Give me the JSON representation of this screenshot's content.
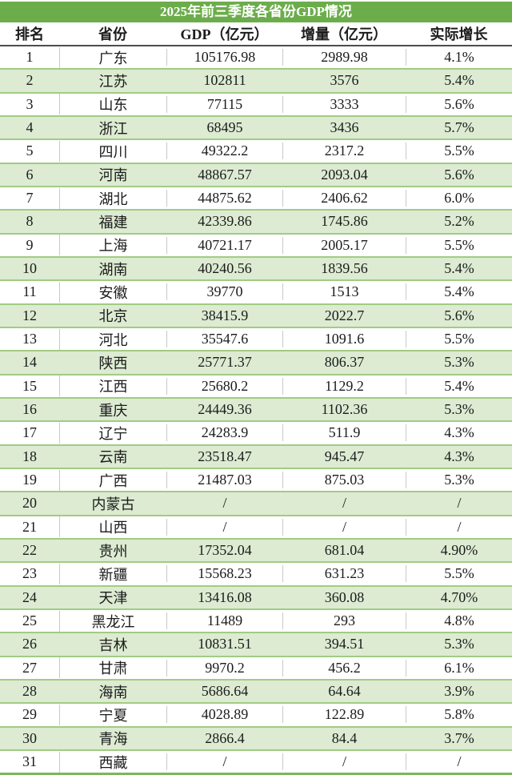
{
  "colors": {
    "title_bg": "#6CAD4B",
    "title_text": "#FFFFFF",
    "row_bg": "#FFFFFF",
    "row_alt_bg": "#DCEBD2",
    "row_separator": "#A2CB83",
    "header_bottom_border": "#4D4D4D",
    "cell_divider": "#C9C9C9",
    "table_bottom_border": "#7FB55C",
    "text": "#1B1B1B"
  },
  "chart_data": {
    "type": "table",
    "title": "2025年前三季度各省份GDP情况",
    "columns": [
      "排名",
      "省份",
      "GDP（亿元）",
      "增量（亿元）",
      "实际增长"
    ],
    "rows": [
      [
        "1",
        "广东",
        "105176.98",
        "2989.98",
        "4.1%"
      ],
      [
        "2",
        "江苏",
        "102811",
        "3576",
        "5.4%"
      ],
      [
        "3",
        "山东",
        "77115",
        "3333",
        "5.6%"
      ],
      [
        "4",
        "浙江",
        "68495",
        "3436",
        "5.7%"
      ],
      [
        "5",
        "四川",
        "49322.2",
        "2317.2",
        "5.5%"
      ],
      [
        "6",
        "河南",
        "48867.57",
        "2093.04",
        "5.6%"
      ],
      [
        "7",
        "湖北",
        "44875.62",
        "2406.62",
        "6.0%"
      ],
      [
        "8",
        "福建",
        "42339.86",
        "1745.86",
        "5.2%"
      ],
      [
        "9",
        "上海",
        "40721.17",
        "2005.17",
        "5.5%"
      ],
      [
        "10",
        "湖南",
        "40240.56",
        "1839.56",
        "5.4%"
      ],
      [
        "11",
        "安徽",
        "39770",
        "1513",
        "5.4%"
      ],
      [
        "12",
        "北京",
        "38415.9",
        "2022.7",
        "5.6%"
      ],
      [
        "13",
        "河北",
        "35547.6",
        "1091.6",
        "5.5%"
      ],
      [
        "14",
        "陕西",
        "25771.37",
        "806.37",
        "5.3%"
      ],
      [
        "15",
        "江西",
        "25680.2",
        "1129.2",
        "5.4%"
      ],
      [
        "16",
        "重庆",
        "24449.36",
        "1102.36",
        "5.3%"
      ],
      [
        "17",
        "辽宁",
        "24283.9",
        "511.9",
        "4.3%"
      ],
      [
        "18",
        "云南",
        "23518.47",
        "945.47",
        "4.3%"
      ],
      [
        "19",
        "广西",
        "21487.03",
        "875.03",
        "5.3%"
      ],
      [
        "20",
        "内蒙古",
        "/",
        "/",
        "/"
      ],
      [
        "21",
        "山西",
        "/",
        "/",
        "/"
      ],
      [
        "22",
        "贵州",
        "17352.04",
        "681.04",
        "4.90%"
      ],
      [
        "23",
        "新疆",
        "15568.23",
        "631.23",
        "5.5%"
      ],
      [
        "24",
        "天津",
        "13416.08",
        "360.08",
        "4.70%"
      ],
      [
        "25",
        "黑龙江",
        "11489",
        "293",
        "4.8%"
      ],
      [
        "26",
        "吉林",
        "10831.51",
        "394.51",
        "5.3%"
      ],
      [
        "27",
        "甘肃",
        "9970.2",
        "456.2",
        "6.1%"
      ],
      [
        "28",
        "海南",
        "5686.64",
        "64.64",
        "3.9%"
      ],
      [
        "29",
        "宁夏",
        "4028.89",
        "122.89",
        "5.8%"
      ],
      [
        "30",
        "青海",
        "2866.4",
        "84.4",
        "3.7%"
      ],
      [
        "31",
        "西藏",
        "/",
        "/",
        "/"
      ]
    ]
  }
}
